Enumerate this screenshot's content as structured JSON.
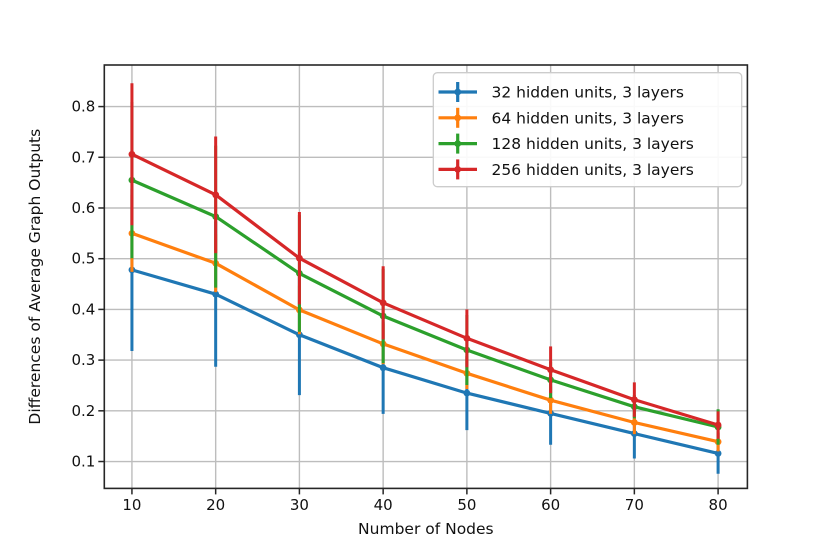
{
  "chart_data": {
    "type": "line",
    "title": "",
    "xlabel": "Number of Nodes",
    "ylabel": "Differences of Average Graph Outputs",
    "grid": true,
    "legend_position": "upper right",
    "x": [
      10,
      20,
      30,
      40,
      50,
      60,
      70,
      80
    ],
    "xticks": [
      10,
      20,
      30,
      40,
      50,
      60,
      70,
      80
    ],
    "xtick_labels": [
      "10",
      "20",
      "30",
      "40",
      "50",
      "60",
      "70",
      "80"
    ],
    "yticks": [
      0.1,
      0.2,
      0.3,
      0.4,
      0.5,
      0.6,
      0.7,
      0.8
    ],
    "ytick_labels": [
      "0.1",
      "0.2",
      "0.3",
      "0.4",
      "0.5",
      "0.6",
      "0.7",
      "0.8"
    ],
    "xlim": [
      6.7,
      83.5
    ],
    "ylim": [
      0.047,
      0.882
    ],
    "colors": {
      "blue": "#1f77b4",
      "orange": "#ff7f0e",
      "green": "#2ca02c",
      "red": "#d62728",
      "grid": "#bdbdbd",
      "spine": "#262626",
      "legend_border": "#cccccc"
    },
    "series": [
      {
        "name": "32 hidden units, 3 layers",
        "color": "#1f77b4",
        "values": [
          0.478,
          0.43,
          0.35,
          0.285,
          0.235,
          0.195,
          0.155,
          0.116
        ],
        "errors": [
          0.16,
          0.143,
          0.119,
          0.091,
          0.073,
          0.062,
          0.049,
          0.04
        ]
      },
      {
        "name": "64 hidden units, 3 layers",
        "color": "#ff7f0e",
        "values": [
          0.55,
          0.491,
          0.399,
          0.332,
          0.274,
          0.221,
          0.177,
          0.139
        ],
        "errors": [
          0.076,
          0.057,
          0.048,
          0.04,
          0.031,
          0.027,
          0.023,
          0.019
        ]
      },
      {
        "name": "128 hidden units, 3 layers",
        "color": "#2ca02c",
        "values": [
          0.655,
          0.583,
          0.471,
          0.387,
          0.32,
          0.261,
          0.208,
          0.168
        ],
        "errors": [
          0.154,
          0.14,
          0.115,
          0.093,
          0.069,
          0.036,
          0.023,
          0.035
        ]
      },
      {
        "name": "256 hidden units, 3 layers",
        "color": "#d62728",
        "values": [
          0.706,
          0.626,
          0.501,
          0.413,
          0.343,
          0.281,
          0.222,
          0.172
        ],
        "errors": [
          0.14,
          0.115,
          0.091,
          0.072,
          0.057,
          0.046,
          0.034,
          0.027
        ]
      }
    ]
  }
}
